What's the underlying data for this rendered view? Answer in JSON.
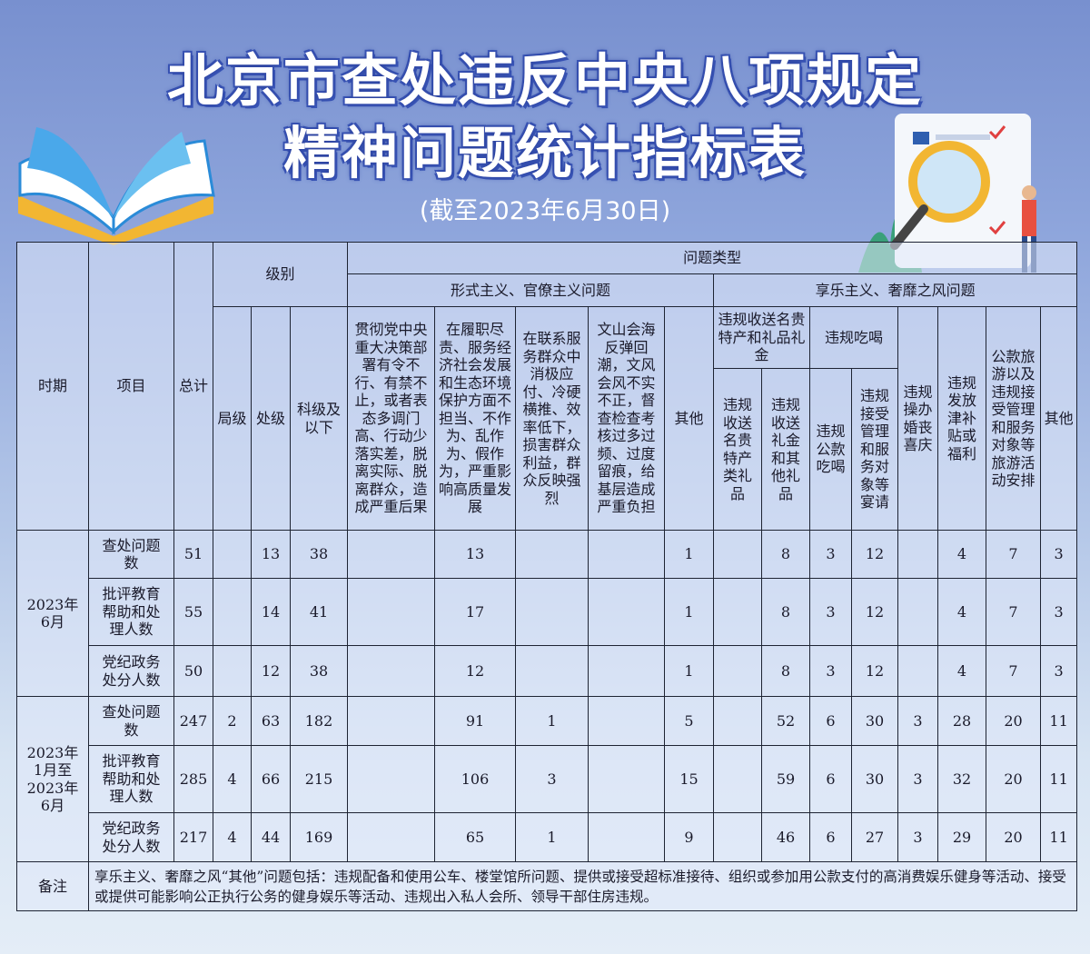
{
  "title_line1": "北京市查处违反中央八项规定",
  "title_line2": "精神问题统计指标表",
  "subtitle": "(截至2023年6月30日)",
  "table": {
    "h_period": "时期",
    "h_item": "项目",
    "h_total": "总计",
    "h_level": "级别",
    "h_problem_type": "问题类型",
    "h_formalism": "形式主义、官僚主义问题",
    "h_hedonism": "享乐主义、奢靡之风问题",
    "levels": [
      "局级",
      "处级",
      "科级及以下"
    ],
    "formalism_cols": [
      "贯彻党中央重大决策部署有令不行、有禁不止，或者表态多调门高、行动少落实差，脱离实际、脱离群众，造成严重后果",
      "在履职尽责、服务经济社会发展和生态环境保护方面不担当、不作为、乱作为、假作为，严重影响高质量发展",
      "在联系服务群众中消极应付、冷硬横推、效率低下，损害群众利益，群众反映强烈",
      "文山会海反弹回潮，文风会风不实不正，督查检查考核过多过频、过度留痕，给基层造成严重负担",
      "其他"
    ],
    "h_gifts": "违规收送名贵特产和礼品礼金",
    "h_dining": "违规吃喝",
    "gift_cols": [
      "违规收送名贵特产类礼品",
      "违规收送礼金和其他礼品"
    ],
    "dining_cols": [
      "违规公款吃喝",
      "违规接受管理和服务对象等宴请"
    ],
    "hedonism_other_cols": [
      "违规操办婚丧喜庆",
      "违规发放津补贴或福利",
      "公款旅游以及违规接受管理和服务对象等旅游活动安排",
      "其他"
    ],
    "groups": [
      {
        "period": "2023年6月",
        "rows": [
          {
            "item": "查处问题数",
            "values": [
              "51",
              "",
              "13",
              "38",
              "",
              "13",
              "",
              "",
              "1",
              "",
              "8",
              "3",
              "12",
              "",
              "4",
              "7",
              "3"
            ]
          },
          {
            "item": "批评教育帮助和处理人数",
            "values": [
              "55",
              "",
              "14",
              "41",
              "",
              "17",
              "",
              "",
              "1",
              "",
              "8",
              "3",
              "12",
              "",
              "4",
              "7",
              "3"
            ]
          },
          {
            "item": "党纪政务处分人数",
            "values": [
              "50",
              "",
              "12",
              "38",
              "",
              "12",
              "",
              "",
              "1",
              "",
              "8",
              "3",
              "12",
              "",
              "4",
              "7",
              "3"
            ]
          }
        ]
      },
      {
        "period": "2023年1月至2023年6月",
        "rows": [
          {
            "item": "查处问题数",
            "values": [
              "247",
              "2",
              "63",
              "182",
              "",
              "91",
              "1",
              "",
              "5",
              "",
              "52",
              "6",
              "30",
              "3",
              "28",
              "20",
              "11"
            ]
          },
          {
            "item": "批评教育帮助和处理人数",
            "values": [
              "285",
              "4",
              "66",
              "215",
              "",
              "106",
              "3",
              "",
              "15",
              "",
              "59",
              "6",
              "30",
              "3",
              "32",
              "20",
              "11"
            ]
          },
          {
            "item": "党纪政务处分人数",
            "values": [
              "217",
              "4",
              "44",
              "169",
              "",
              "65",
              "1",
              "",
              "9",
              "",
              "46",
              "6",
              "27",
              "3",
              "29",
              "20",
              "11"
            ]
          }
        ]
      }
    ],
    "remark_label": "备注",
    "remark_text": "享乐主义、奢靡之风“其他”问题包括：违规配备和使用公车、楼堂馆所问题、提供或接受超标准接待、组织或参加用公款支付的高消费娱乐健身等活动、接受或提供可能影响公正执行公务的健身娱乐等活动、违规出入私人会所、领导干部住房违规。"
  }
}
